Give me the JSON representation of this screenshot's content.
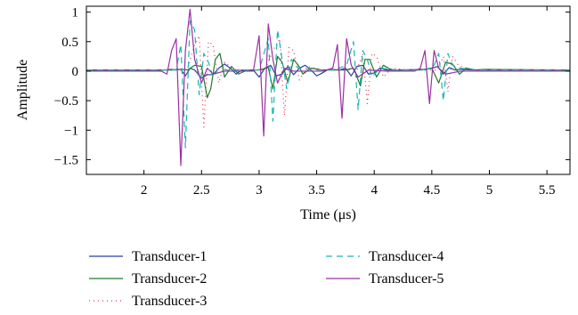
{
  "chart_data": {
    "type": "line",
    "title": "",
    "xlabel": "Time (μs)",
    "ylabel": "Amplitude",
    "xlim": [
      1.5,
      5.7
    ],
    "ylim": [
      -1.75,
      1.1
    ],
    "xticks": [
      2,
      2.5,
      3,
      3.5,
      4,
      4.5,
      5,
      5.5
    ],
    "xtick_labels": [
      "2",
      "2.5",
      "3",
      "3.5",
      "4",
      "4.5",
      "5",
      "5.5"
    ],
    "yticks": [
      1,
      0.5,
      0,
      -0.5,
      -1,
      -1.5
    ],
    "ytick_labels": [
      "1",
      "0.5",
      "0",
      "−0.5",
      "−1",
      "−1.5"
    ],
    "grid": false,
    "legend_position": "bottom",
    "series": [
      {
        "name": "Transducer-1",
        "color": "#2a3f9e",
        "dash": "solid",
        "x": [
          1.5,
          2.18,
          2.24,
          2.28,
          2.32,
          2.36,
          2.4,
          2.44,
          2.5,
          2.55,
          2.6,
          2.65,
          2.7,
          2.75,
          2.8,
          2.85,
          2.9,
          2.95,
          3.0,
          3.05,
          3.1,
          3.15,
          3.2,
          3.25,
          3.3,
          3.35,
          3.4,
          3.45,
          3.5,
          3.55,
          3.6,
          3.7,
          3.75,
          3.8,
          3.85,
          3.9,
          3.95,
          4.0,
          4.05,
          4.1,
          4.2,
          4.45,
          4.5,
          4.55,
          4.6,
          4.65,
          4.7,
          4.75,
          4.85,
          5.7
        ],
        "y": [
          0.02,
          0.02,
          0.03,
          0.02,
          0.03,
          -0.08,
          0.05,
          0.02,
          -0.12,
          -0.06,
          -0.06,
          0.05,
          0.12,
          0.05,
          -0.05,
          0.02,
          0.0,
          0.02,
          -0.1,
          0.05,
          0.1,
          -0.08,
          -0.05,
          0.08,
          -0.06,
          0.05,
          0.1,
          0.02,
          -0.08,
          -0.03,
          0.03,
          0.02,
          0.05,
          -0.08,
          0.08,
          0.1,
          -0.05,
          -0.03,
          0.05,
          0.02,
          0.02,
          0.03,
          0.05,
          0.08,
          -0.05,
          0.06,
          0.02,
          0.03,
          0.02,
          0.02
        ]
      },
      {
        "name": "Transducer-2",
        "color": "#1f7a2e",
        "dash": "solid",
        "x": [
          1.5,
          2.25,
          2.32,
          2.38,
          2.44,
          2.5,
          2.55,
          2.58,
          2.62,
          2.66,
          2.7,
          2.76,
          2.82,
          2.9,
          3.0,
          3.08,
          3.12,
          3.16,
          3.2,
          3.25,
          3.3,
          3.34,
          3.38,
          3.45,
          3.55,
          3.65,
          3.75,
          3.82,
          3.88,
          3.92,
          3.96,
          4.02,
          4.08,
          4.15,
          4.25,
          4.4,
          4.5,
          4.56,
          4.62,
          4.68,
          4.74,
          4.8,
          4.88,
          4.95,
          5.7
        ],
        "y": [
          0.02,
          0.02,
          0.03,
          0.02,
          0.1,
          0.08,
          -0.45,
          -0.3,
          0.2,
          0.3,
          -0.1,
          0.08,
          -0.05,
          0.02,
          0.02,
          0.06,
          -0.3,
          0.25,
          0.15,
          -0.2,
          0.2,
          0.1,
          -0.05,
          0.05,
          0.02,
          0.02,
          0.02,
          0.05,
          -0.25,
          0.2,
          0.2,
          -0.1,
          0.1,
          0.02,
          0.02,
          0.02,
          0.05,
          -0.2,
          0.15,
          0.12,
          -0.05,
          0.05,
          0.02,
          0.03,
          0.02
        ]
      },
      {
        "name": "Transducer-3",
        "color": "#e0304a",
        "dash": "1,4",
        "x": [
          1.5,
          2.3,
          2.38,
          2.44,
          2.48,
          2.52,
          2.56,
          2.6,
          2.65,
          2.7,
          2.78,
          2.9,
          3.05,
          3.12,
          3.18,
          3.22,
          3.26,
          3.3,
          3.35,
          3.42,
          3.55,
          3.7,
          3.85,
          3.9,
          3.94,
          3.98,
          4.02,
          4.08,
          4.15,
          4.3,
          4.55,
          4.6,
          4.64,
          4.68,
          4.73,
          4.8,
          4.9,
          5.7
        ],
        "y": [
          0.02,
          0.02,
          0.05,
          0.45,
          0.6,
          -0.95,
          0.5,
          0.45,
          -0.2,
          0.15,
          0.03,
          0.02,
          0.02,
          0.35,
          0.55,
          -0.75,
          0.4,
          0.35,
          -0.15,
          0.08,
          0.02,
          0.02,
          0.02,
          0.3,
          -0.55,
          0.3,
          0.25,
          -0.1,
          0.05,
          0.02,
          0.02,
          0.25,
          -0.35,
          0.25,
          0.1,
          0.05,
          0.02,
          0.02
        ]
      },
      {
        "name": "Transducer-4",
        "color": "#1ab5b5",
        "dash": "7,5",
        "x": [
          1.5,
          2.28,
          2.32,
          2.36,
          2.4,
          2.44,
          2.48,
          2.52,
          2.56,
          2.6,
          2.65,
          2.72,
          2.85,
          3.0,
          3.08,
          3.12,
          3.16,
          3.2,
          3.24,
          3.28,
          3.34,
          3.45,
          3.65,
          3.76,
          3.82,
          3.86,
          3.9,
          3.94,
          3.98,
          4.05,
          4.2,
          4.45,
          4.52,
          4.56,
          4.6,
          4.64,
          4.68,
          4.75,
          4.9,
          5.7
        ],
        "y": [
          0.02,
          0.02,
          0.45,
          -1.3,
          0.85,
          0.7,
          -0.4,
          0.3,
          0.15,
          -0.1,
          0.05,
          0.02,
          0.02,
          0.02,
          0.55,
          -0.85,
          0.7,
          0.2,
          -0.3,
          0.2,
          0.05,
          0.02,
          0.02,
          0.1,
          0.5,
          -0.65,
          0.35,
          0.2,
          -0.1,
          0.05,
          0.02,
          0.02,
          0.1,
          0.3,
          -0.5,
          0.3,
          0.1,
          0.05,
          0.02,
          0.02
        ]
      },
      {
        "name": "Transducer-5",
        "color": "#9b2fa3",
        "dash": "solid",
        "x": [
          1.5,
          2.15,
          2.2,
          2.24,
          2.28,
          2.32,
          2.36,
          2.4,
          2.44,
          2.5,
          2.55,
          2.6,
          2.7,
          2.85,
          2.95,
          3.0,
          3.04,
          3.08,
          3.12,
          3.16,
          3.22,
          3.3,
          3.45,
          3.55,
          3.64,
          3.68,
          3.72,
          3.76,
          3.8,
          3.86,
          3.95,
          4.1,
          4.35,
          4.4,
          4.44,
          4.48,
          4.52,
          4.56,
          4.62,
          4.75,
          5.7
        ],
        "y": [
          0.0,
          0.0,
          -0.05,
          0.35,
          0.55,
          -1.6,
          0.35,
          1.05,
          0.2,
          -0.2,
          0.05,
          -0.05,
          0.0,
          0.0,
          0.0,
          0.6,
          -1.1,
          0.8,
          0.2,
          -0.2,
          0.05,
          0.0,
          0.0,
          0.0,
          0.05,
          0.45,
          -0.8,
          0.55,
          0.1,
          -0.1,
          0.02,
          0.0,
          0.0,
          0.05,
          0.35,
          -0.55,
          0.35,
          0.05,
          -0.05,
          0.0,
          0.0
        ]
      }
    ]
  }
}
